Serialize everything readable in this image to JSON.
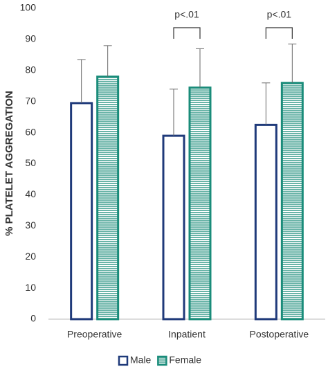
{
  "chart_data": {
    "type": "bar",
    "y_label": "% PLATELET AGGREGATION",
    "categories": [
      "Preoperative",
      "Inpatient",
      "Postoperative"
    ],
    "series": [
      {
        "name": "Male",
        "color": "#1f3a7a",
        "fill": "#ffffff",
        "values": [
          69.5,
          59,
          62.5
        ],
        "errors": [
          14,
          15,
          13.5
        ]
      },
      {
        "name": "Female",
        "color": "#1a8c7a",
        "hatch": "horizontal",
        "values": [
          78,
          74.5,
          76
        ],
        "errors": [
          10,
          12.5,
          12.5
        ]
      }
    ],
    "annotations": [
      {
        "text": "p<.01",
        "category": "Inpatient"
      },
      {
        "text": "p<.01",
        "category": "Postoperative"
      }
    ],
    "ylim": [
      0,
      100
    ],
    "yticks": [
      0,
      10,
      20,
      30,
      40,
      50,
      60,
      70,
      80,
      90,
      100
    ],
    "legend": "bottom"
  }
}
